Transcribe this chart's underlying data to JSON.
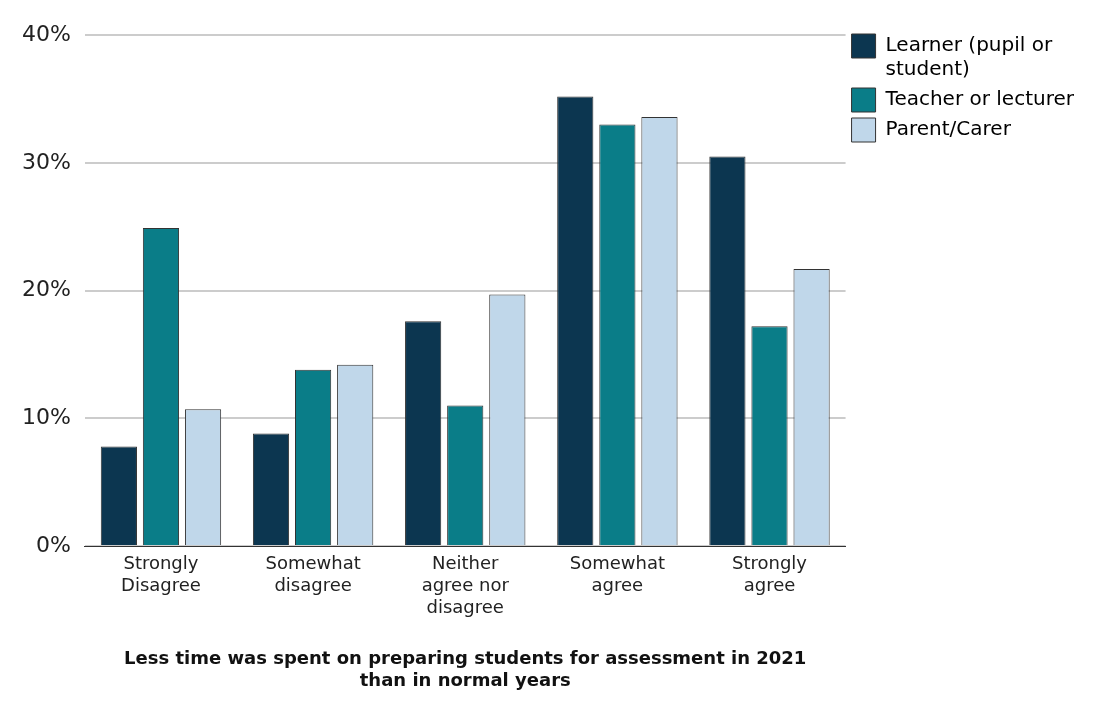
{
  "chart_data": {
    "type": "bar",
    "xlabel": "Less time was spent on preparing students for assessment in 2021 than in normal years",
    "categories": [
      "Strongly Disagree",
      "Somewhat disagree",
      "Neither agree nor disagree",
      "Somewhat agree",
      "Strongly agree"
    ],
    "series": [
      {
        "name": "Learner (pupil or student)",
        "color": "#0c3650",
        "values": [
          7.8,
          8.8,
          17.6,
          35.2,
          30.5
        ]
      },
      {
        "name": "Teacher or lecturer",
        "color": "#0a7d88",
        "values": [
          24.9,
          13.8,
          11.0,
          33.0,
          17.2
        ]
      },
      {
        "name": "Parent/Carer",
        "color": "#c0d7ea",
        "values": [
          10.7,
          14.2,
          19.7,
          33.6,
          21.7
        ]
      }
    ],
    "ylim": [
      0,
      40
    ],
    "yticks": [
      {
        "value": 0,
        "label": "0%"
      },
      {
        "value": 10,
        "label": "10%"
      },
      {
        "value": 20,
        "label": "20%"
      },
      {
        "value": 30,
        "label": "30%"
      },
      {
        "value": 40,
        "label": "40%"
      }
    ],
    "grid": "y",
    "legend": "top right"
  }
}
